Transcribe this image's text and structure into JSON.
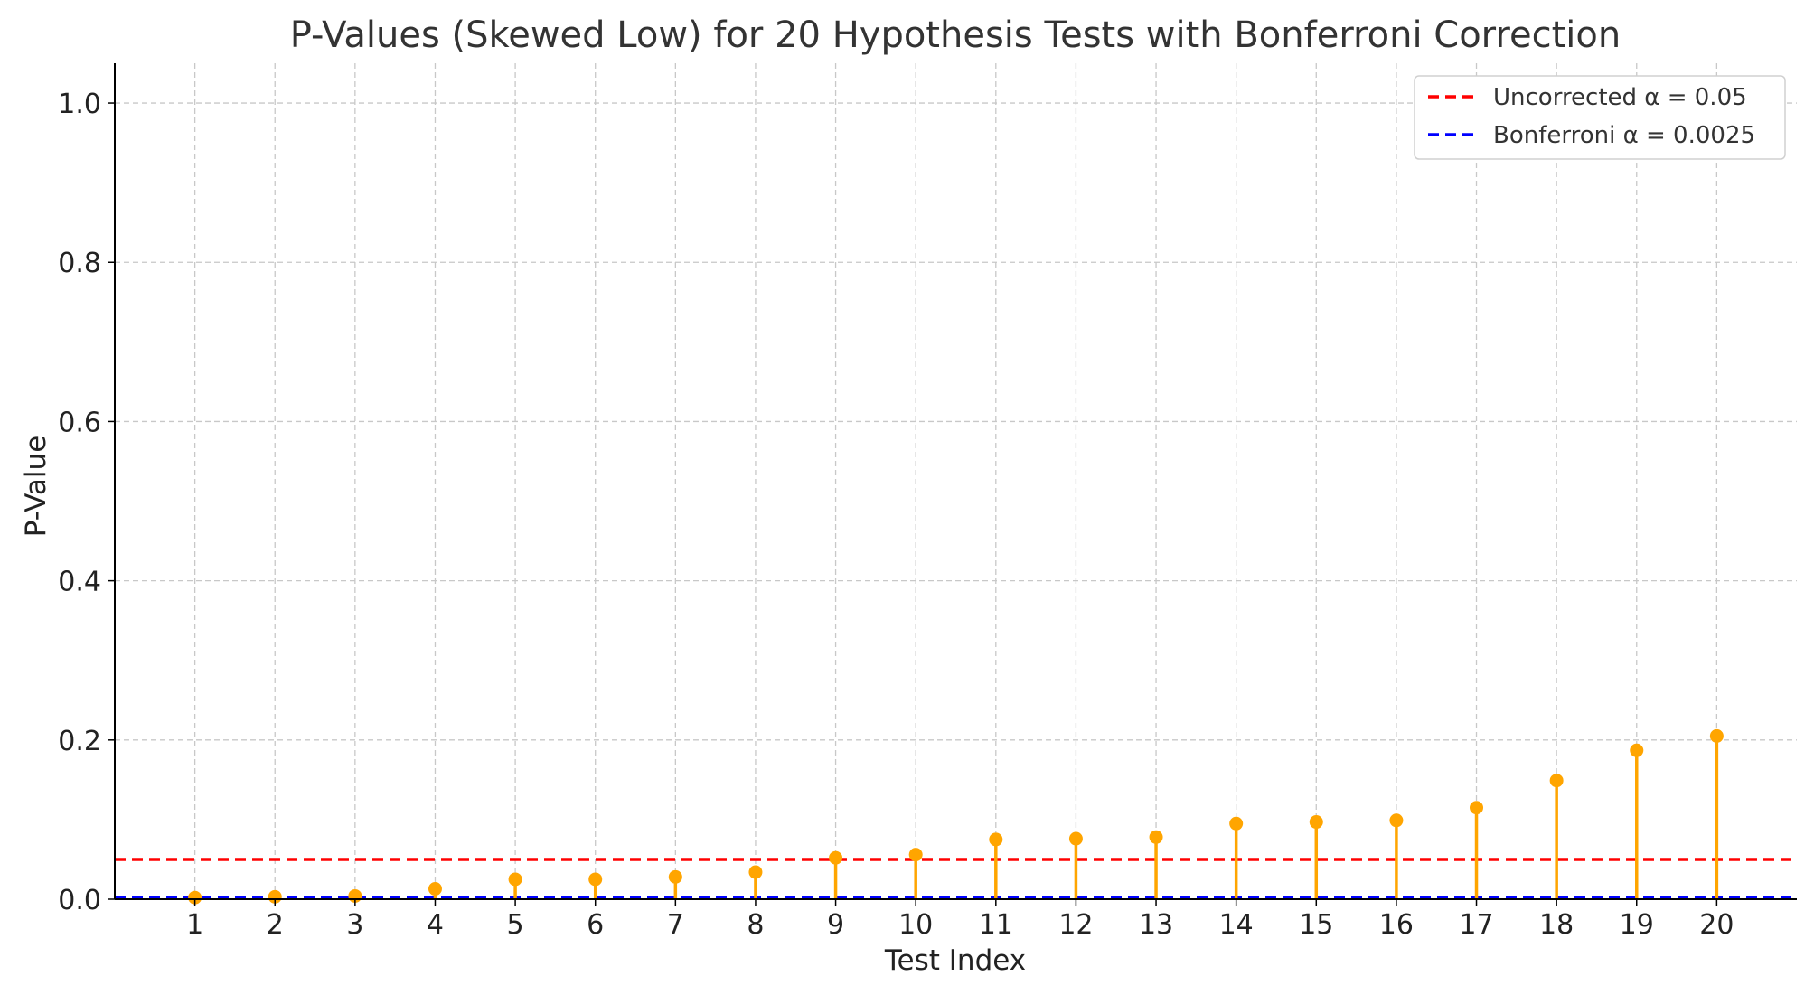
{
  "chart_data": {
    "type": "scatter",
    "title": "P-Values (Skewed Low) for 20 Hypothesis Tests with Bonferroni Correction",
    "xlabel": "Test Index",
    "ylabel": "P-Value",
    "xlim": [
      0,
      21
    ],
    "ylim": [
      0.0,
      1.05
    ],
    "x_ticks": [
      1,
      2,
      3,
      4,
      5,
      6,
      7,
      8,
      9,
      10,
      11,
      12,
      13,
      14,
      15,
      16,
      17,
      18,
      19,
      20
    ],
    "x_tick_labels": [
      "1",
      "2",
      "3",
      "4",
      "5",
      "6",
      "7",
      "8",
      "9",
      "10",
      "11",
      "12",
      "13",
      "14",
      "15",
      "16",
      "17",
      "18",
      "19",
      "20"
    ],
    "y_ticks": [
      0.0,
      0.2,
      0.4,
      0.6,
      0.8,
      1.0
    ],
    "y_tick_labels": [
      "0.0",
      "0.2",
      "0.4",
      "0.6",
      "0.8",
      "1.0"
    ],
    "grid": true,
    "marker_style": "stem",
    "series": [
      {
        "x": [
          1,
          2,
          3,
          4,
          5,
          6,
          7,
          8,
          9,
          10,
          11,
          12,
          13,
          14,
          15,
          16,
          17,
          18,
          19,
          20
        ],
        "values": [
          0.002,
          0.003,
          0.004,
          0.013,
          0.025,
          0.025,
          0.028,
          0.034,
          0.052,
          0.056,
          0.075,
          0.076,
          0.078,
          0.095,
          0.097,
          0.099,
          0.115,
          0.149,
          0.187,
          0.205
        ],
        "color": "#FFA500"
      }
    ],
    "reference_lines": [
      {
        "name": "Uncorrected α = 0.05",
        "value": 0.05,
        "color": "#FF0000",
        "style": "dashed"
      },
      {
        "name": "Bonferroni α = 0.0025",
        "value": 0.0025,
        "color": "#0000FF",
        "style": "dashed"
      }
    ],
    "legend_position": "top-right"
  }
}
